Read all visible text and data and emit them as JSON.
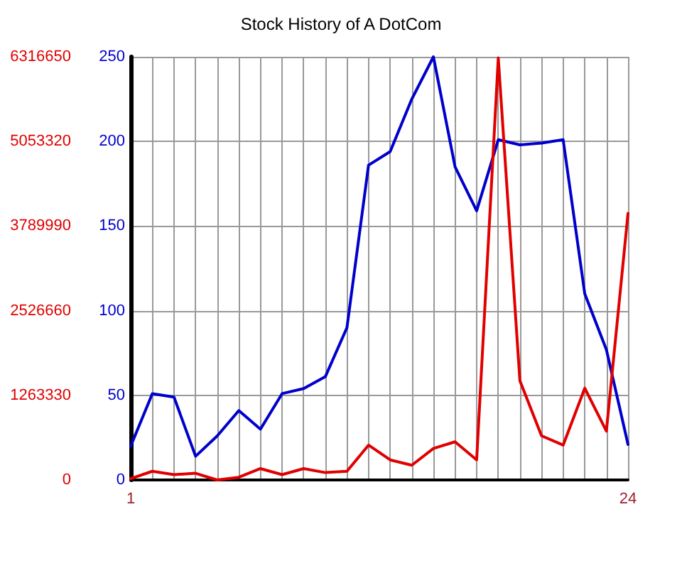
{
  "chart_data": {
    "type": "line",
    "title": "Stock History of A DotCom",
    "x": [
      1,
      2,
      3,
      4,
      5,
      6,
      7,
      8,
      9,
      10,
      11,
      12,
      13,
      14,
      15,
      16,
      17,
      18,
      19,
      20,
      21,
      22,
      23,
      24
    ],
    "xlim": [
      1,
      24
    ],
    "xticks": [
      1,
      {
        "value": 2,
        "label": null
      },
      {
        "value": 3,
        "label": null
      },
      {
        "value": 4,
        "label": null
      },
      {
        "value": 5,
        "label": null
      },
      {
        "value": 6,
        "label": null
      },
      {
        "value": 7,
        "label": null
      },
      {
        "value": 8,
        "label": null
      },
      {
        "value": 9,
        "label": null
      },
      {
        "value": 10,
        "label": null
      },
      {
        "value": 11,
        "label": null
      },
      {
        "value": 12,
        "label": null
      },
      {
        "value": 13,
        "label": null
      },
      {
        "value": 14,
        "label": null
      },
      {
        "value": 15,
        "label": null
      },
      {
        "value": 16,
        "label": null
      },
      {
        "value": 17,
        "label": null
      },
      {
        "value": 18,
        "label": null
      },
      {
        "value": 19,
        "label": null
      },
      {
        "value": 20,
        "label": null
      },
      {
        "value": 21,
        "label": null
      },
      {
        "value": 22,
        "label": null
      },
      {
        "value": 23,
        "label": null
      },
      24
    ],
    "ylim": [
      0,
      250
    ],
    "yticks": [
      0,
      50,
      100,
      150,
      200,
      250
    ],
    "y2lim": [
      0,
      6316650
    ],
    "y2ticks": [
      0,
      1263330,
      2526660,
      3789990,
      5053320,
      6316650
    ],
    "series": [
      {
        "color": "#0000cc",
        "values": [
          20,
          51,
          49,
          14,
          26,
          41,
          30,
          51,
          54,
          61,
          90,
          186,
          194,
          225,
          250,
          185,
          159,
          201,
          198,
          199,
          201,
          110,
          77,
          21
        ]
      },
      {
        "color": "#e00000",
        "axis": "y2",
        "values": [
          20000,
          130000,
          80000,
          100000,
          0,
          40000,
          170000,
          80000,
          170000,
          110000,
          130000,
          520000,
          300000,
          220000,
          470000,
          570000,
          300000,
          6300000,
          1480000,
          660000,
          520000,
          1370000,
          730000,
          3980000
        ]
      }
    ],
    "grid": true,
    "marker": "none",
    "line_style": "solid"
  }
}
